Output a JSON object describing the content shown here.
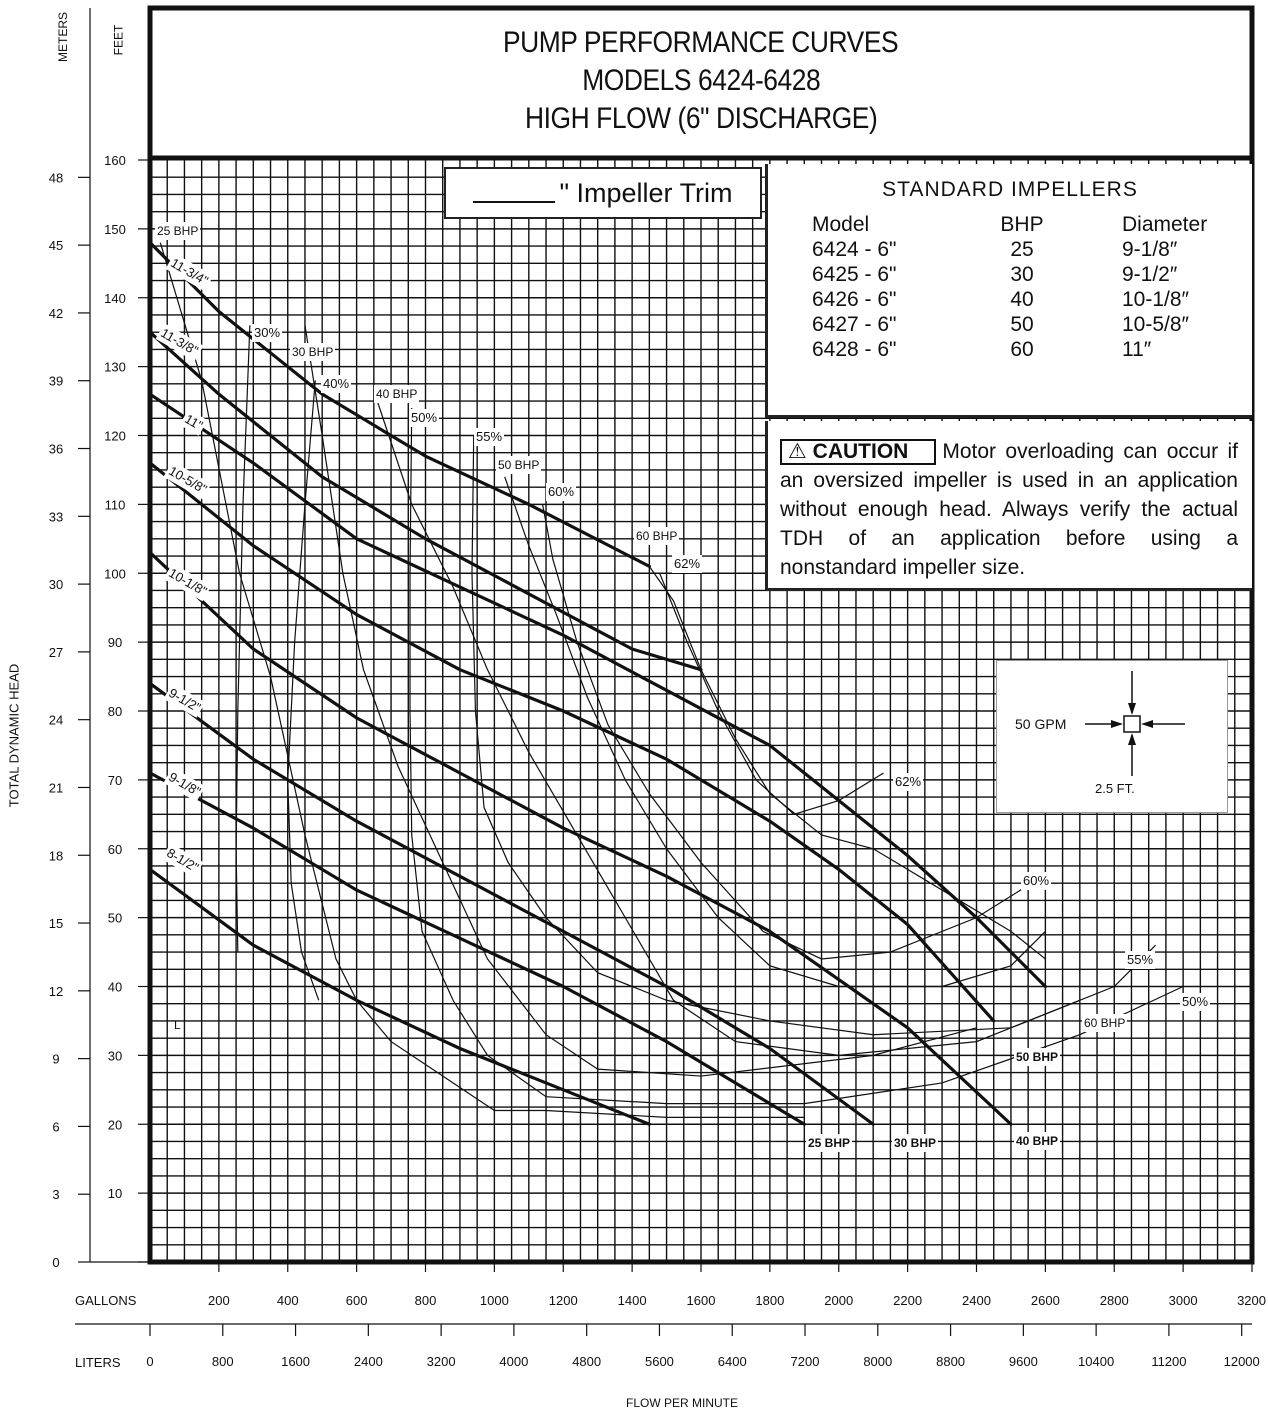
{
  "title": [
    "PUMP PERFORMANCE CURVES",
    "MODELS 6424-6428",
    "HIGH FLOW (6\" DISCHARGE)"
  ],
  "impeller_trim_label": "\" Impeller Trim",
  "standard_impellers": {
    "title": "STANDARD IMPELLERS",
    "headers": [
      "Model",
      "BHP",
      "Diameter"
    ],
    "rows": [
      [
        "6424 - 6\"",
        "25",
        "9-1/8″"
      ],
      [
        "6425 - 6\"",
        "30",
        "9-1/2″"
      ],
      [
        "6426 - 6\"",
        "40",
        "10-1/8″"
      ],
      [
        "6427 - 6\"",
        "50",
        "10-5/8″"
      ],
      [
        "6428 - 6\"",
        "60",
        "11″"
      ]
    ]
  },
  "caution": {
    "tag": "⚠ CAUTION",
    "text": "Motor overloading can occur if an oversized impeller is used in an application without enough head. Always verify the actual TDH of an application before using a nonstandard impeller size."
  },
  "scale_key": {
    "gpm": "50 GPM",
    "ft": "2.5 FT."
  },
  "axes": {
    "meters_label": "METERS",
    "feet_label": "FEET",
    "y_title": "TOTAL DYNAMIC HEAD",
    "gallons_label": "GALLONS",
    "liters_label": "LITERS",
    "x_title": "FLOW PER MINUTE",
    "feet_ticks": [
      "0",
      "10",
      "20",
      "30",
      "40",
      "50",
      "60",
      "70",
      "80",
      "90",
      "100",
      "110",
      "120",
      "130",
      "140",
      "150",
      "160"
    ],
    "meters_ticks": [
      "0",
      "3",
      "6",
      "9",
      "12",
      "15",
      "18",
      "21",
      "24",
      "27",
      "30",
      "33",
      "36",
      "39",
      "42",
      "45",
      "48"
    ],
    "gallons_ticks": [
      "200",
      "400",
      "600",
      "800",
      "1000",
      "1200",
      "1400",
      "1600",
      "1800",
      "2000",
      "2200",
      "2400",
      "2600",
      "2800",
      "3000",
      "3200"
    ],
    "liters_ticks": [
      "0",
      "800",
      "1600",
      "2400",
      "3200",
      "4000",
      "4800",
      "5600",
      "6400",
      "7200",
      "8000",
      "8800",
      "9600",
      "10400",
      "11200",
      "12000"
    ]
  },
  "chart_data": {
    "type": "line",
    "x_unit": "GALLONS",
    "y_unit": "FEET",
    "xlim": [
      0,
      3200
    ],
    "ylim": [
      0,
      160
    ],
    "grid": true,
    "series": [
      {
        "name": "11-3/4\"",
        "x": [
          0,
          200,
          500,
          800,
          1100,
          1450
        ],
        "y": [
          148,
          138,
          126,
          117,
          110,
          101
        ]
      },
      {
        "name": "11-3/8\"",
        "x": [
          0,
          200,
          500,
          800,
          1100,
          1400,
          1600
        ],
        "y": [
          135,
          126,
          114,
          105,
          97,
          89,
          86
        ]
      },
      {
        "name": "11\"",
        "x": [
          0,
          300,
          600,
          900,
          1200,
          1500,
          1800,
          2000,
          2200,
          2400,
          2600
        ],
        "y": [
          126,
          116,
          105,
          98,
          91,
          83,
          75,
          67,
          59,
          50,
          40
        ]
      },
      {
        "name": "10-5/8\"",
        "x": [
          0,
          300,
          600,
          900,
          1200,
          1500,
          1800,
          2000,
          2200,
          2450
        ],
        "y": [
          116,
          104,
          94,
          86,
          80,
          73,
          64,
          57,
          49,
          35
        ]
      },
      {
        "name": "10-1/8\"",
        "x": [
          0,
          300,
          600,
          900,
          1200,
          1500,
          1800,
          2000,
          2200,
          2500
        ],
        "y": [
          103,
          89,
          79,
          71,
          63,
          56,
          48,
          41,
          34,
          20
        ]
      },
      {
        "name": "9-1/2\"",
        "x": [
          0,
          300,
          600,
          900,
          1200,
          1500,
          1800,
          2100
        ],
        "y": [
          84,
          73,
          64,
          56,
          48,
          40,
          31,
          20
        ]
      },
      {
        "name": "9-1/8\"",
        "x": [
          0,
          300,
          600,
          900,
          1200,
          1500,
          1800,
          1900
        ],
        "y": [
          71,
          63,
          54,
          47,
          40,
          32,
          23,
          20
        ]
      },
      {
        "name": "8-1/2\"",
        "x": [
          0,
          300,
          600,
          900,
          1200,
          1450
        ],
        "y": [
          57,
          46,
          38,
          31,
          25,
          20
        ]
      }
    ],
    "annotations": [
      "25 BHP",
      "30 BHP",
      "40 BHP",
      "50 BHP",
      "60 BHP",
      "30%",
      "40%",
      "50%",
      "55%",
      "60%",
      "62%",
      "L"
    ]
  }
}
